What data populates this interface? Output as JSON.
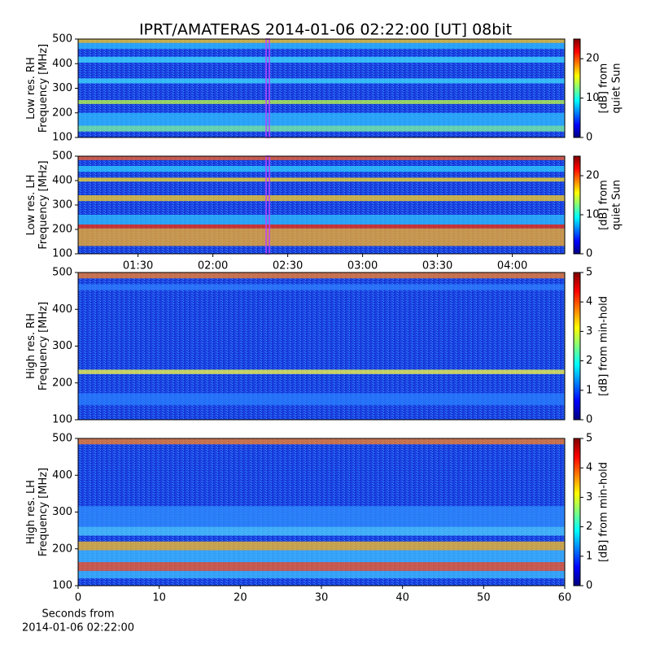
{
  "title": "IPRT/AMATERAS 2014-01-06 02:22:00 [UT]   08bit",
  "chart_data": [
    {
      "type": "heatmap",
      "ylabel": [
        "Low res. RH",
        "Frequency [MHz]"
      ],
      "ylim": [
        100,
        500
      ],
      "yticks": [
        100,
        200,
        300,
        400,
        500
      ],
      "xlim": [
        "01:06",
        "04:21"
      ],
      "marker_time": "02:22",
      "marker_color": "#c040ff",
      "colormap": "jet",
      "colorbar": {
        "label": [
          "[dB] from",
          "quiet Sun"
        ],
        "clim": [
          0,
          25
        ],
        "ticks": [
          0,
          10,
          20
        ]
      }
    },
    {
      "type": "heatmap",
      "ylabel": [
        "Low res. LH",
        "Frequency [MHz]"
      ],
      "ylim": [
        100,
        500
      ],
      "yticks": [
        100,
        200,
        300,
        400,
        500
      ],
      "xlim": [
        "01:06",
        "04:21"
      ],
      "xticks": [
        "01:30",
        "02:00",
        "02:30",
        "03:00",
        "03:30",
        "04:00"
      ],
      "marker_time": "02:22",
      "marker_color": "#c040ff",
      "colormap": "jet",
      "colorbar": {
        "label": [
          "[dB] from",
          "quiet Sun"
        ],
        "clim": [
          0,
          25
        ],
        "ticks": [
          0,
          10,
          20
        ]
      }
    },
    {
      "type": "heatmap",
      "ylabel": [
        "High res. RH",
        "Frequency [MHz]"
      ],
      "ylim": [
        100,
        500
      ],
      "yticks": [
        100,
        200,
        300,
        400,
        500
      ],
      "xlim": [
        0,
        60
      ],
      "colormap": "jet",
      "colorbar": {
        "label": [
          "[dB] from min-hold"
        ],
        "clim": [
          0,
          5
        ],
        "ticks": [
          0,
          1,
          2,
          3,
          4,
          5
        ]
      }
    },
    {
      "type": "heatmap",
      "ylabel": [
        "High res. LH",
        "Frequency [MHz]"
      ],
      "ylim": [
        100,
        500
      ],
      "yticks": [
        100,
        200,
        300,
        400,
        500
      ],
      "xlim": [
        0,
        60
      ],
      "xticks": [
        0,
        10,
        20,
        30,
        40,
        50,
        60
      ],
      "xlabel": [
        "Seconds from",
        "2014-01-06 02:22:00"
      ],
      "colormap": "jet",
      "colorbar": {
        "label": [
          "[dB] from min-hold"
        ],
        "clim": [
          0,
          5
        ],
        "ticks": [
          0,
          1,
          2,
          3,
          4,
          5
        ]
      }
    }
  ]
}
